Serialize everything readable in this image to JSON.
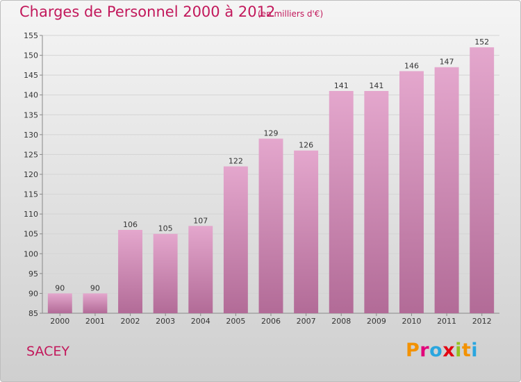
{
  "header": {
    "title": "Charges de Personnel 2000 à 2012",
    "subtitle": "(en milliers d'€)"
  },
  "footer": {
    "location": "SACEY",
    "logo": "Proxiti"
  },
  "colors": {
    "title": "#c2185b",
    "bar_top": "#e4a7cd",
    "bar_bottom": "#b26b97",
    "logo": [
      "#f39200",
      "#e2007a",
      "#2aa6df",
      "#e30613",
      "#95c11f",
      "#f39200",
      "#2aa6df"
    ]
  },
  "chart_data": {
    "type": "bar",
    "title": "Charges de Personnel 2000 à 2012",
    "subtitle": "(en milliers d'€)",
    "categories": [
      "2000",
      "2001",
      "2002",
      "2003",
      "2004",
      "2005",
      "2006",
      "2007",
      "2008",
      "2009",
      "2010",
      "2011",
      "2012"
    ],
    "values": [
      90,
      90,
      106,
      105,
      107,
      122,
      129,
      126,
      141,
      141,
      146,
      147,
      152
    ],
    "ylim": [
      85,
      155
    ],
    "yticks": [
      85,
      90,
      95,
      100,
      105,
      110,
      115,
      120,
      125,
      130,
      135,
      140,
      145,
      150,
      155
    ],
    "grid": true,
    "data_labels": true
  }
}
